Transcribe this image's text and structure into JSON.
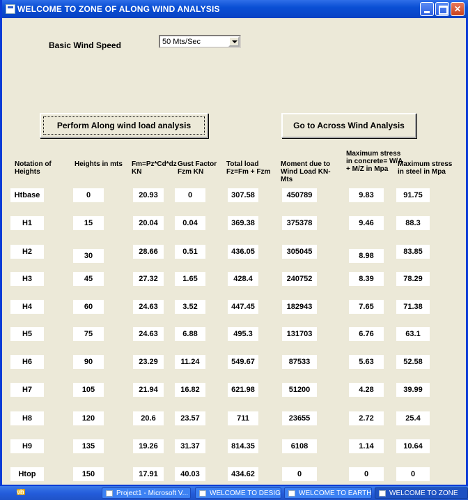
{
  "window": {
    "title": "WELCOME TO ZONE OF ALONG WIND ANALYSIS"
  },
  "form": {
    "wind_speed_label": "Basic Wind Speed",
    "wind_speed_value": "50 Mts/Sec",
    "perform_button": "Perform Along  wind load analysis",
    "across_button": "Go to Across Wind  Analysis"
  },
  "table": {
    "headers": [
      "Notation of Heights",
      "Heights in mts",
      "Fm=Pz*Cd*dz KN",
      "Gust Factor Fzm   KN",
      "Total load Fz=Fm + Fzm",
      "Moment due to Wind Load KN-Mts",
      "Maximum stress in concrete= W/A + M/Z in Mpa",
      "Maximum stress in steel in Mpa"
    ],
    "rows": [
      [
        "Htbase",
        "0",
        "20.93",
        "0",
        "307.58",
        "450789",
        "9.83",
        "91.75"
      ],
      [
        "H1",
        "15",
        "20.04",
        "0.04",
        "369.38",
        "375378",
        "9.46",
        "88.3"
      ],
      [
        "H2",
        "30",
        "28.66",
        "0.51",
        "436.05",
        "305045",
        "8.98",
        "83.85"
      ],
      [
        "H3",
        "45",
        "27.32",
        "1.65",
        "428.4",
        "240752",
        "8.39",
        "78.29"
      ],
      [
        "H4",
        "60",
        "24.63",
        "3.52",
        "447.45",
        "182943",
        "7.65",
        "71.38"
      ],
      [
        "H5",
        "75",
        "24.63",
        "6.88",
        "495.3",
        "131703",
        "6.76",
        "63.1"
      ],
      [
        "H6",
        "90",
        "23.29",
        "11.24",
        "549.67",
        "87533",
        "5.63",
        "52.58"
      ],
      [
        "H7",
        "105",
        "21.94",
        "16.82",
        "621.98",
        "51200",
        "4.28",
        "39.99"
      ],
      [
        "H8",
        "120",
        "20.6",
        "23.57",
        "711",
        "23655",
        "2.72",
        "25.4"
      ],
      [
        "H9",
        "135",
        "19.26",
        "31.37",
        "814.35",
        "6108",
        "1.14",
        "10.64"
      ],
      [
        "Htop",
        "150",
        "17.91",
        "40.03",
        "434.62",
        "0",
        "0",
        "0"
      ]
    ]
  },
  "taskbar": {
    "items": [
      "vb",
      "Project1 - Microsoft V...",
      "WELCOME TO DESIG...",
      "WELCOME TO EARTH...",
      "WELCOME TO ZONE"
    ]
  }
}
